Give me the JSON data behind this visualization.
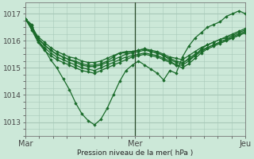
{
  "bg_color": "#cce8d8",
  "grid_color": "#a8c8b8",
  "line_color": "#1a6b2a",
  "marker_color": "#1a6b2a",
  "xlabel": "Pression niveau de la mer( hPa )",
  "xlim": [
    0,
    48
  ],
  "ylim": [
    1012.5,
    1017.4
  ],
  "yticks": [
    1013,
    1014,
    1015,
    1016,
    1017
  ],
  "xtick_positions": [
    0,
    24,
    48
  ],
  "xtick_labels": [
    "Mar",
    "Mer",
    "Jeu"
  ],
  "vline_x": 24,
  "series": [
    [
      1016.8,
      1016.6,
      1016.0,
      1015.7,
      1015.3,
      1015.0,
      1014.6,
      1014.2,
      1013.7,
      1013.3,
      1013.05,
      1012.9,
      1013.1,
      1013.5,
      1014.0,
      1014.5,
      1014.9,
      1015.1,
      1015.25,
      1015.1,
      1014.95,
      1014.8,
      1014.55,
      1014.9,
      1014.8,
      1015.4,
      1015.8,
      1016.1,
      1016.3,
      1016.5,
      1016.6,
      1016.7,
      1016.9,
      1017.0,
      1017.1,
      1017.0
    ],
    [
      1016.8,
      1016.55,
      1016.1,
      1015.85,
      1015.65,
      1015.5,
      1015.4,
      1015.3,
      1015.25,
      1015.15,
      1015.1,
      1015.1,
      1015.15,
      1015.25,
      1015.4,
      1015.55,
      1015.55,
      1015.6,
      1015.65,
      1015.7,
      1015.6,
      1015.55,
      1015.45,
      1015.35,
      1015.25,
      1015.2,
      1015.3,
      1015.45,
      1015.7,
      1015.85,
      1015.95,
      1016.05,
      1016.1,
      1016.2,
      1016.3,
      1016.4
    ],
    [
      1016.8,
      1016.5,
      1016.15,
      1015.95,
      1015.75,
      1015.6,
      1015.5,
      1015.4,
      1015.35,
      1015.25,
      1015.2,
      1015.2,
      1015.25,
      1015.35,
      1015.45,
      1015.55,
      1015.6,
      1015.6,
      1015.65,
      1015.7,
      1015.65,
      1015.6,
      1015.5,
      1015.4,
      1015.35,
      1015.3,
      1015.45,
      1015.6,
      1015.75,
      1015.85,
      1015.95,
      1016.05,
      1016.15,
      1016.25,
      1016.35,
      1016.45
    ],
    [
      1016.8,
      1016.45,
      1016.0,
      1015.75,
      1015.55,
      1015.4,
      1015.3,
      1015.2,
      1015.1,
      1015.0,
      1014.95,
      1014.9,
      1015.0,
      1015.1,
      1015.2,
      1015.3,
      1015.4,
      1015.45,
      1015.5,
      1015.55,
      1015.5,
      1015.45,
      1015.35,
      1015.25,
      1015.1,
      1015.1,
      1015.25,
      1015.45,
      1015.6,
      1015.75,
      1015.85,
      1015.95,
      1016.05,
      1016.1,
      1016.2,
      1016.3
    ],
    [
      1016.8,
      1016.5,
      1016.05,
      1015.85,
      1015.65,
      1015.5,
      1015.4,
      1015.3,
      1015.2,
      1015.1,
      1015.05,
      1015.05,
      1015.1,
      1015.2,
      1015.3,
      1015.4,
      1015.5,
      1015.55,
      1015.6,
      1015.65,
      1015.6,
      1015.55,
      1015.45,
      1015.3,
      1015.2,
      1015.15,
      1015.35,
      1015.5,
      1015.65,
      1015.75,
      1015.85,
      1015.95,
      1016.05,
      1016.15,
      1016.25,
      1016.35
    ],
    [
      1016.8,
      1016.4,
      1015.95,
      1015.65,
      1015.45,
      1015.3,
      1015.2,
      1015.1,
      1015.0,
      1014.9,
      1014.85,
      1014.8,
      1014.9,
      1015.0,
      1015.1,
      1015.2,
      1015.3,
      1015.4,
      1015.45,
      1015.5,
      1015.45,
      1015.4,
      1015.3,
      1015.2,
      1015.1,
      1015.0,
      1015.15,
      1015.35,
      1015.55,
      1015.7,
      1015.8,
      1015.9,
      1016.0,
      1016.1,
      1016.2,
      1016.3
    ]
  ]
}
